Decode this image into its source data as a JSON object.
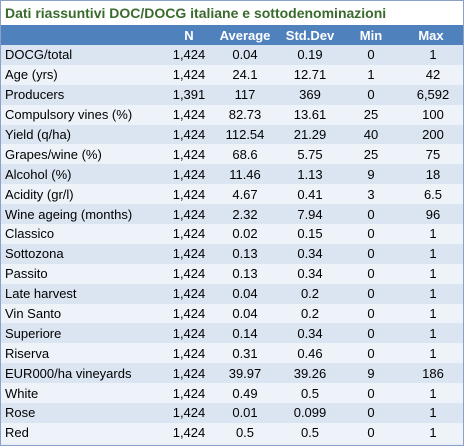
{
  "title": "Dati riassuntivi DOC/DOCG italiane e sottodenominazioni",
  "columns": [
    "",
    "N",
    "Average",
    "Std.Dev",
    "Min",
    "Max"
  ],
  "rows": [
    [
      "DOCG/total",
      "1,424",
      "0.04",
      "0.19",
      "0",
      "1"
    ],
    [
      "Age (yrs)",
      "1,424",
      "24.1",
      "12.71",
      "1",
      "42"
    ],
    [
      "Producers",
      "1,391",
      "117",
      "369",
      "0",
      "6,592"
    ],
    [
      "Compulsory vines (%)",
      "1,424",
      "82.73",
      "13.61",
      "25",
      "100"
    ],
    [
      "Yield (q/ha)",
      "1,424",
      "112.54",
      "21.29",
      "40",
      "200"
    ],
    [
      "Grapes/wine (%)",
      "1,424",
      "68.6",
      "5.75",
      "25",
      "75"
    ],
    [
      "Alcohol (%)",
      "1,424",
      "11.46",
      "1.13",
      "9",
      "18"
    ],
    [
      "Acidity (gr/l)",
      "1,424",
      "4.67",
      "0.41",
      "3",
      "6.5"
    ],
    [
      "Wine ageing (months)",
      "1,424",
      "2.32",
      "7.94",
      "0",
      "96"
    ],
    [
      "Classico",
      "1,424",
      "0.02",
      "0.15",
      "0",
      "1"
    ],
    [
      "Sottozona",
      "1,424",
      "0.13",
      "0.34",
      "0",
      "1"
    ],
    [
      "Passito",
      "1,424",
      "0.13",
      "0.34",
      "0",
      "1"
    ],
    [
      "Late harvest",
      "1,424",
      "0.04",
      "0.2",
      "0",
      "1"
    ],
    [
      "Vin Santo",
      "1,424",
      "0.04",
      "0.2",
      "0",
      "1"
    ],
    [
      "Superiore",
      "1,424",
      "0.14",
      "0.34",
      "0",
      "1"
    ],
    [
      "Riserva",
      "1,424",
      "0.31",
      "0.46",
      "0",
      "1"
    ],
    [
      "EUR000/ha vineyards",
      "1,424",
      "39.97",
      "39.26",
      "9",
      "186"
    ],
    [
      "White",
      "1,424",
      "0.49",
      "0.5",
      "0",
      "1"
    ],
    [
      "Rose",
      "1,424",
      "0.01",
      "0.099",
      "0",
      "1"
    ],
    [
      "Red",
      "1,424",
      "0.5",
      "0.5",
      "0",
      "1"
    ]
  ],
  "colors": {
    "header_bg": "#4f81bd",
    "title_text": "#3a6b2e",
    "row_odd": "#dbe5f1",
    "row_even": "#eef3f9"
  }
}
